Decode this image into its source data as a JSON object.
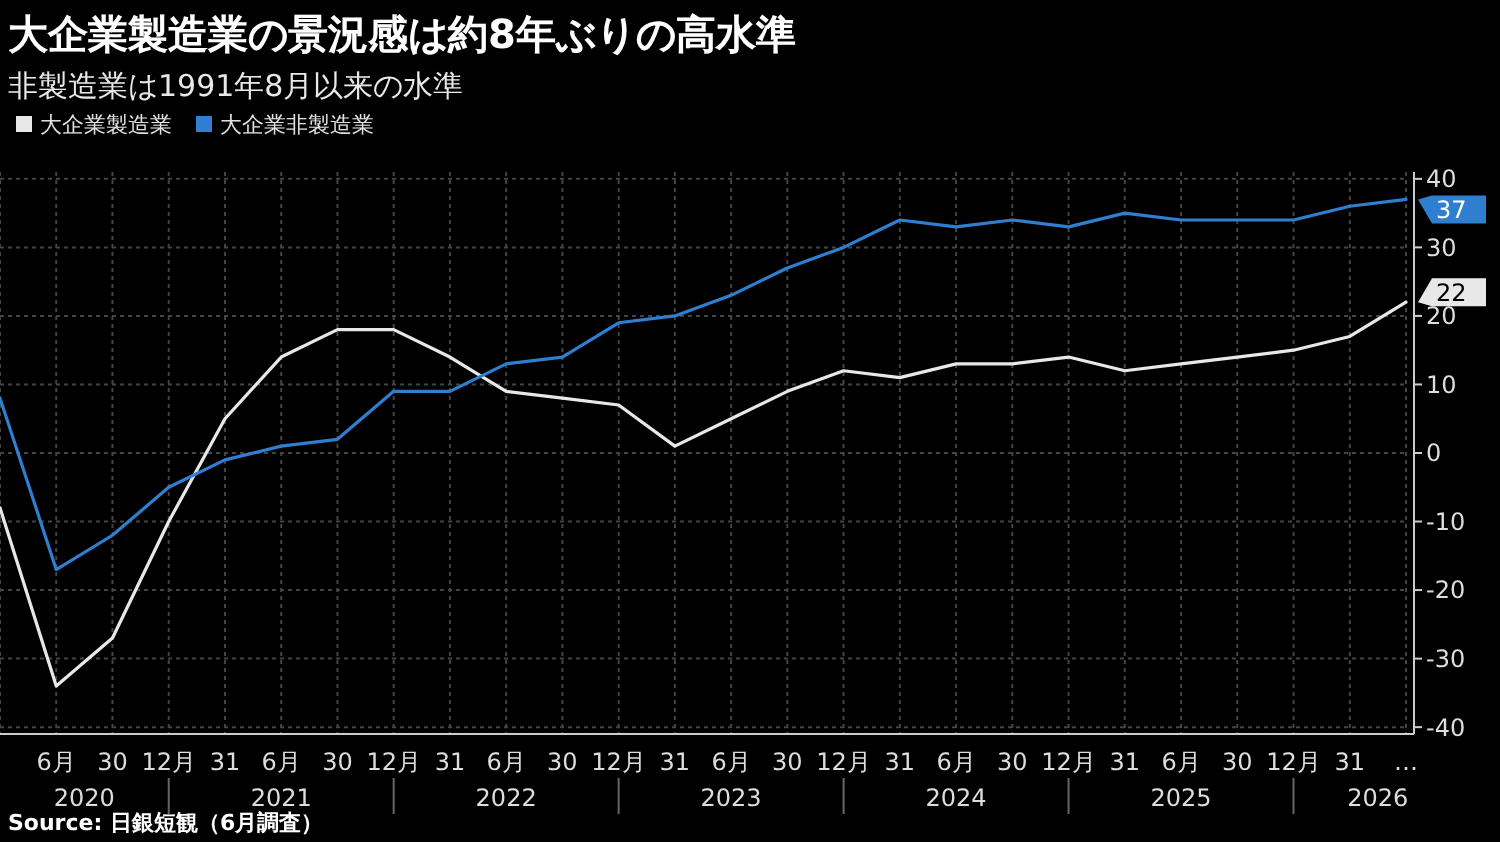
{
  "chart_data": {
    "type": "line",
    "title": "大企業製造業の景況感は約8年ぶりの高水準",
    "subtitle": "非製造業は1991年8月以来の水準",
    "categories": [
      null,
      "6月",
      "30",
      "12月",
      "31",
      "6月",
      "30",
      "12月",
      "31",
      "6月",
      "30",
      "12月",
      "31",
      "6月",
      "30",
      "12月",
      "31",
      "6月",
      "30",
      "12月",
      "31",
      "6月",
      "30",
      "12月",
      "31",
      "…"
    ],
    "series": [
      {
        "name": "大企業製造業",
        "color": "#e8e8e8",
        "values": [
          -8,
          -34,
          -27,
          -10,
          5,
          14,
          18,
          18,
          14,
          9,
          8,
          7,
          1,
          5,
          9,
          12,
          11,
          13,
          13,
          14,
          12,
          13,
          14,
          15,
          17,
          22
        ],
        "value_labels": [
          null,
          null,
          null,
          null,
          null,
          null,
          null,
          null,
          null,
          null,
          null,
          null,
          null,
          null,
          null,
          null,
          null,
          null,
          null,
          null,
          null,
          null,
          null,
          null,
          null,
          "22"
        ]
      },
      {
        "name": "大企業非製造業",
        "color": "#2f7fd1",
        "values": [
          8,
          -17,
          -12,
          -5,
          -1,
          1,
          2,
          9,
          9,
          13,
          14,
          19,
          20,
          23,
          27,
          30,
          34,
          33,
          34,
          33,
          35,
          34,
          34,
          34,
          36,
          37
        ],
        "value_labels": [
          null,
          null,
          null,
          null,
          null,
          null,
          null,
          null,
          null,
          null,
          null,
          null,
          null,
          null,
          null,
          null,
          null,
          null,
          null,
          null,
          null,
          null,
          null,
          null,
          null,
          "37"
        ]
      }
    ],
    "ylim": [
      -41,
      41
    ],
    "yticks": [
      -40,
      -30,
      -20,
      -10,
      0,
      10,
      20,
      30,
      40
    ],
    "grid": true,
    "legend": "top left",
    "annotations": [
      "2020",
      "2021",
      "2022",
      "2023",
      "2024",
      "2025",
      "2026",
      "Source: 日銀短観（6月調査）"
    ]
  }
}
